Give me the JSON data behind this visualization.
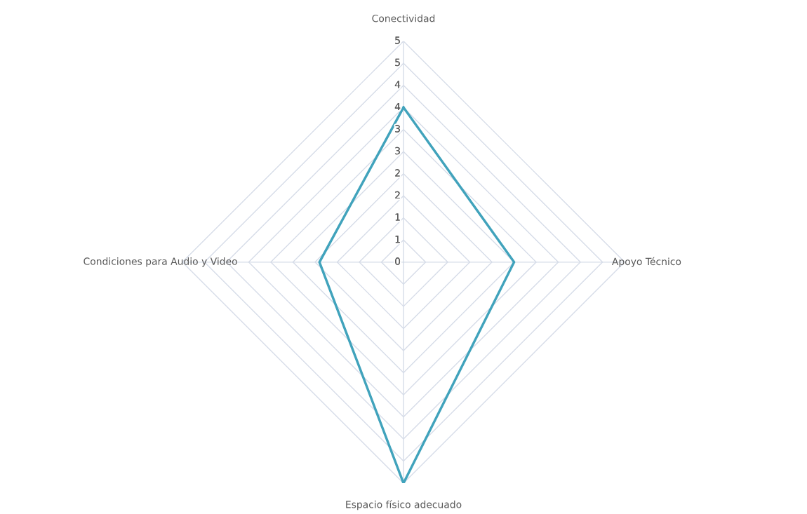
{
  "chart_data": {
    "type": "radar",
    "categories": [
      "Conectividad",
      "Apoyo Técnico",
      "Espacio físico adecuado",
      "Condiciones para Audio y Video"
    ],
    "series": [
      {
        "color": "#41a3bc",
        "values": [
          3.5,
          2.5,
          5,
          1.9
        ]
      }
    ],
    "ylim": [
      0,
      5
    ],
    "yticks": [
      0,
      {
        "value": 0.5,
        "label": "1"
      },
      1,
      {
        "value": 1.5,
        "label": "2"
      },
      2,
      {
        "value": 2.5,
        "label": "3"
      },
      3,
      {
        "value": 3.5,
        "label": "4"
      },
      4,
      {
        "value": 4.5,
        "label": "5"
      },
      5
    ],
    "grid": true,
    "legend": false,
    "marker": "none",
    "line_style": "solid"
  }
}
